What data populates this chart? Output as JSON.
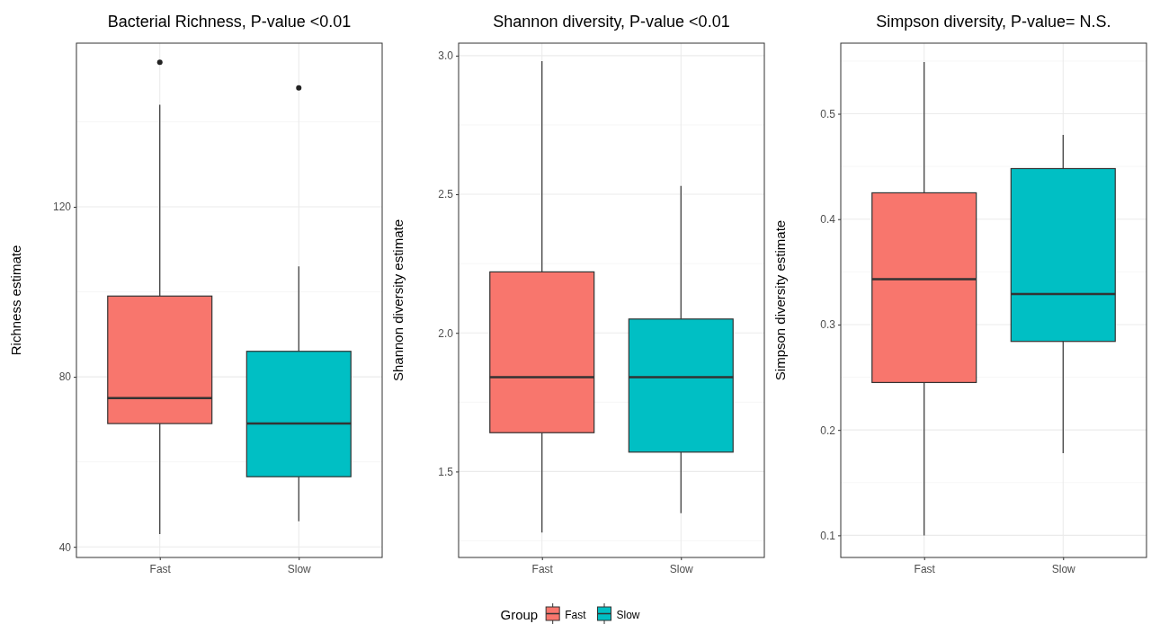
{
  "chart_data": [
    {
      "type": "box",
      "title": "Bacterial Richness, P-value <0.01",
      "ylabel": "Richness estimate",
      "categories": [
        "Fast",
        "Slow"
      ],
      "series": [
        {
          "name": "Fast",
          "color": "#f8766d",
          "boxes": [
            {
              "low": 43,
              "q1": 69,
              "median": 75,
              "q3": 99,
              "high": 144,
              "outliers": [
                154
              ]
            },
            null
          ]
        },
        {
          "name": "Slow",
          "color": "#00bfc4",
          "boxes": [
            null,
            {
              "low": 46,
              "q1": 56.5,
              "median": 69,
              "q3": 86,
              "high": 106,
              "outliers": [
                148
              ]
            }
          ]
        }
      ],
      "ylim": [
        37.5,
        158.5
      ],
      "yticks": [
        40,
        80,
        120
      ],
      "grid": true,
      "legend": "bottom",
      "legend_title": "Group"
    },
    {
      "type": "box",
      "title": "Shannon diversity, P-value <0.01",
      "ylabel": "Shannon diversity estimate",
      "categories": [
        "Fast",
        "Slow"
      ],
      "series": [
        {
          "color": "#f8766d",
          "boxes": [
            {
              "low": 1.28,
              "q1": 1.64,
              "median": 1.84,
              "q3": 2.22,
              "high": 2.98
            },
            null
          ]
        },
        {
          "color": "#00bfc4",
          "boxes": [
            null,
            {
              "low": 1.35,
              "q1": 1.57,
              "median": 1.84,
              "q3": 2.05,
              "high": 2.53
            }
          ]
        }
      ],
      "ylim": [
        1.19,
        3.045
      ],
      "yticks": [
        {
          "value": 1.5,
          "label": "1.5"
        },
        {
          "value": 2,
          "label": "2.0"
        },
        {
          "value": 2.5,
          "label": "2.5"
        },
        {
          "value": 3,
          "label": "3.0"
        }
      ],
      "grid": true
    },
    {
      "type": "box",
      "title": "Simpson diversity, P-value= N.S.",
      "ylabel": "Simpson diversity estimate",
      "categories": [
        "Fast",
        "Slow"
      ],
      "series": [
        {
          "color": "#f8766d",
          "boxes": [
            {
              "low": 0.1,
              "q1": 0.245,
              "median": 0.343,
              "q3": 0.425,
              "high": 0.549
            },
            null
          ]
        },
        {
          "color": "#00bfc4",
          "boxes": [
            null,
            {
              "low": 0.178,
              "q1": 0.284,
              "median": 0.329,
              "q3": 0.448,
              "high": 0.48
            }
          ]
        }
      ],
      "ylim": [
        0.079,
        0.567
      ],
      "yticks": [
        0.1,
        0.2,
        0.3,
        0.4,
        0.5
      ],
      "grid": true
    }
  ]
}
